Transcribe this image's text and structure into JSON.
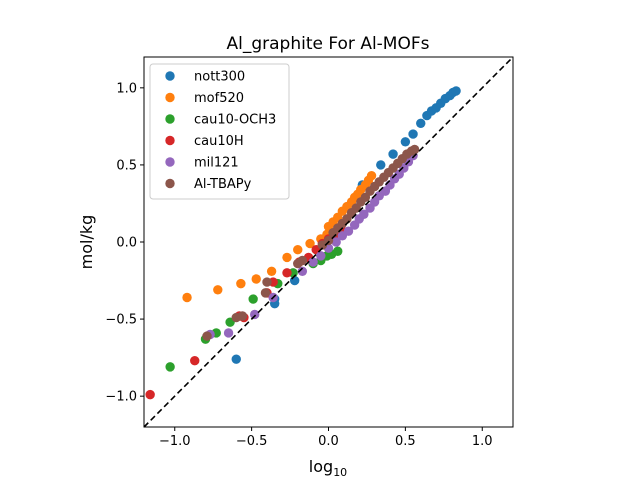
{
  "chart_data": {
    "type": "scatter",
    "title": "Al_graphite For Al-MOFs",
    "xlabel_base": "log",
    "xlabel_sub": "10",
    "ylabel": "mol/kg",
    "xlim": [
      -1.2,
      1.2
    ],
    "ylim": [
      -1.2,
      1.2
    ],
    "xticks": [
      -1.0,
      -0.5,
      0.0,
      0.5,
      1.0
    ],
    "yticks": [
      -1.0,
      -0.5,
      0.0,
      0.5,
      1.0
    ],
    "xtick_labels": [
      "−1.0",
      "−0.5",
      "0.0",
      "0.5",
      "1.0"
    ],
    "ytick_labels": [
      "−1.0",
      "−0.5",
      "0.0",
      "0.5",
      "1.0"
    ],
    "grid": false,
    "legend_position": "upper-left",
    "reference_line": {
      "style": "dashed",
      "color": "#000000",
      "x": [
        -1.2,
        1.2
      ],
      "y": [
        -1.2,
        1.2
      ]
    },
    "series": [
      {
        "name": "nott300",
        "color": "#1f77b4",
        "points": [
          [
            -0.6,
            -0.76
          ],
          [
            -0.35,
            -0.4
          ],
          [
            -0.35,
            -0.37
          ],
          [
            -0.22,
            -0.25
          ],
          [
            0.22,
            0.37
          ],
          [
            0.34,
            0.5
          ],
          [
            0.42,
            0.57
          ],
          [
            0.5,
            0.65
          ],
          [
            0.55,
            0.7
          ],
          [
            0.6,
            0.77
          ],
          [
            0.64,
            0.82
          ],
          [
            0.67,
            0.85
          ],
          [
            0.7,
            0.87
          ],
          [
            0.73,
            0.9
          ],
          [
            0.76,
            0.93
          ],
          [
            0.79,
            0.95
          ],
          [
            0.81,
            0.97
          ],
          [
            0.83,
            0.98
          ]
        ]
      },
      {
        "name": "mof520",
        "color": "#ff7f0e",
        "points": [
          [
            -0.92,
            -0.36
          ],
          [
            -0.72,
            -0.31
          ],
          [
            -0.57,
            -0.27
          ],
          [
            -0.47,
            -0.24
          ],
          [
            -0.37,
            -0.19
          ],
          [
            -0.27,
            -0.1
          ],
          [
            -0.2,
            -0.05
          ],
          [
            -0.12,
            -0.01
          ],
          [
            -0.05,
            0.02
          ],
          [
            -0.01,
            0.05
          ],
          [
            0.0,
            0.1
          ],
          [
            0.03,
            0.13
          ],
          [
            0.06,
            0.16
          ],
          [
            0.09,
            0.2
          ],
          [
            0.12,
            0.23
          ],
          [
            0.15,
            0.26
          ],
          [
            0.17,
            0.29
          ],
          [
            0.19,
            0.31
          ],
          [
            0.21,
            0.34
          ],
          [
            0.24,
            0.37
          ],
          [
            0.26,
            0.4
          ],
          [
            0.28,
            0.43
          ]
        ]
      },
      {
        "name": "cau10-OCH3",
        "color": "#2ca02c",
        "points": [
          [
            -1.03,
            -0.81
          ],
          [
            -0.8,
            -0.63
          ],
          [
            -0.73,
            -0.59
          ],
          [
            -0.64,
            -0.52
          ],
          [
            -0.49,
            -0.37
          ],
          [
            -0.33,
            -0.27
          ],
          [
            -0.23,
            -0.2
          ],
          [
            -0.1,
            -0.14
          ],
          [
            -0.05,
            -0.12
          ],
          [
            -0.01,
            -0.09
          ],
          [
            0.02,
            -0.08
          ],
          [
            0.06,
            -0.06
          ]
        ]
      },
      {
        "name": "cau10H",
        "color": "#d62728",
        "points": [
          [
            -1.16,
            -0.99
          ],
          [
            -0.87,
            -0.77
          ],
          [
            -0.58,
            -0.48
          ],
          [
            -0.55,
            -0.49
          ],
          [
            -0.4,
            -0.33
          ],
          [
            -0.36,
            -0.26
          ],
          [
            -0.27,
            -0.2
          ],
          [
            -0.19,
            -0.13
          ],
          [
            -0.13,
            -0.1
          ],
          [
            -0.08,
            -0.05
          ],
          [
            -0.04,
            -0.01
          ],
          [
            0.0,
            0.02
          ],
          [
            0.04,
            0.05
          ],
          [
            0.08,
            0.09
          ]
        ]
      },
      {
        "name": "mil121",
        "color": "#9467bd",
        "points": [
          [
            -0.77,
            -0.6
          ],
          [
            -0.65,
            -0.59
          ],
          [
            -0.48,
            -0.47
          ],
          [
            -0.36,
            -0.36
          ],
          [
            -0.17,
            -0.19
          ],
          [
            -0.1,
            -0.13
          ],
          [
            -0.05,
            -0.09
          ],
          [
            0.0,
            -0.04
          ],
          [
            0.05,
            0.0
          ],
          [
            0.09,
            0.04
          ],
          [
            0.13,
            0.07
          ],
          [
            0.17,
            0.11
          ],
          [
            0.2,
            0.15
          ],
          [
            0.23,
            0.18
          ],
          [
            0.27,
            0.22
          ],
          [
            0.3,
            0.26
          ],
          [
            0.33,
            0.3
          ],
          [
            0.37,
            0.33
          ],
          [
            0.4,
            0.37
          ],
          [
            0.43,
            0.41
          ],
          [
            0.46,
            0.44
          ],
          [
            0.49,
            0.48
          ],
          [
            0.52,
            0.52
          ],
          [
            0.55,
            0.56
          ]
        ]
      },
      {
        "name": "Al-TBAPy",
        "color": "#8c564b",
        "points": [
          [
            -0.79,
            -0.61
          ],
          [
            -0.6,
            -0.49
          ],
          [
            -0.56,
            -0.48
          ],
          [
            -0.41,
            -0.33
          ],
          [
            -0.4,
            -0.26
          ],
          [
            -0.2,
            -0.14
          ],
          [
            -0.17,
            -0.12
          ],
          [
            -0.04,
            -0.02
          ],
          [
            0.0,
            0.01
          ],
          [
            0.03,
            0.06
          ],
          [
            0.06,
            0.09
          ],
          [
            0.09,
            0.12
          ],
          [
            0.12,
            0.15
          ],
          [
            0.15,
            0.19
          ],
          [
            0.18,
            0.22
          ],
          [
            0.21,
            0.26
          ],
          [
            0.24,
            0.29
          ],
          [
            0.27,
            0.33
          ],
          [
            0.3,
            0.36
          ],
          [
            0.33,
            0.39
          ],
          [
            0.36,
            0.42
          ],
          [
            0.39,
            0.45
          ],
          [
            0.42,
            0.48
          ],
          [
            0.45,
            0.51
          ],
          [
            0.48,
            0.54
          ],
          [
            0.51,
            0.57
          ],
          [
            0.54,
            0.59
          ],
          [
            0.56,
            0.6
          ]
        ]
      }
    ]
  }
}
